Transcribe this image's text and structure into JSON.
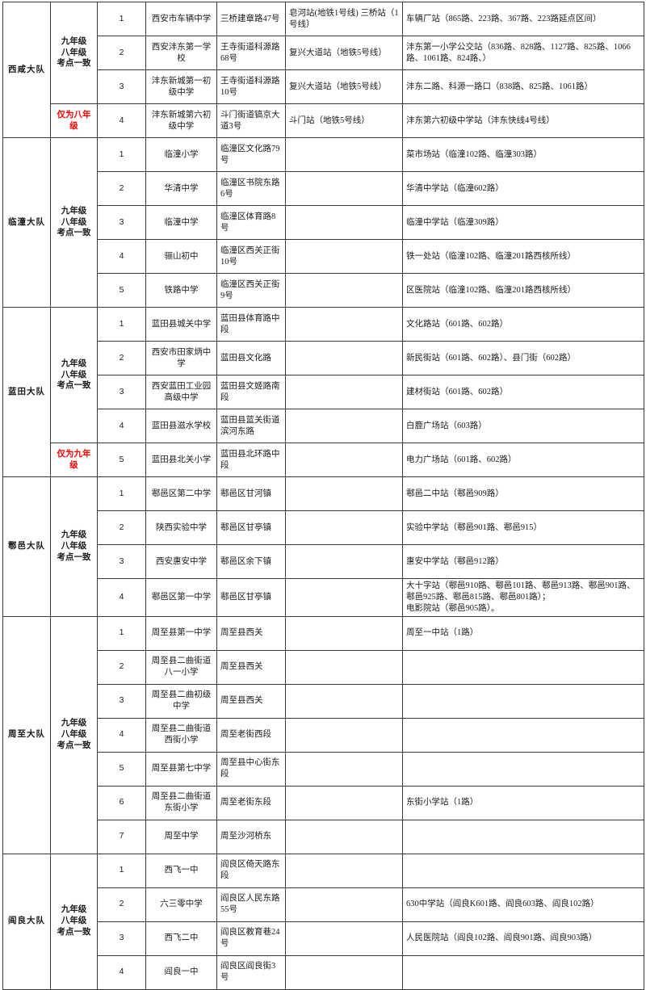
{
  "colors": {
    "red_text": "#ff0000",
    "border": "#3a3a3a",
    "text": "#1a1a1a",
    "background": "#ffffff"
  },
  "table": {
    "column_keys": [
      "district",
      "grade",
      "num",
      "school",
      "address",
      "metro",
      "bus"
    ],
    "sections": [
      {
        "district": "西咸大队",
        "groups": [
          {
            "grade": "九年级\n八年级\n考点一致",
            "red": false,
            "rows": [
              {
                "num": "1",
                "school": "西安市车辆中学",
                "address": "三桥建章路47号",
                "metro": "皂河站(地铁1号线) 三桥站（1号线）",
                "bus": "车辆厂站（865路、223路、367路、223路延点区间）"
              },
              {
                "num": "2",
                "school": "西安沣东第一学校",
                "address": "王寺街道科源路68号",
                "metro": "复兴大道站（地铁5号线）",
                "bus": "沣东第一小学公交站（836路、828路、1127路、825路、1066路、1061路、824路、）"
              },
              {
                "num": "3",
                "school": "沣东新城第一初级中学",
                "address": "王寺街道科源路10号",
                "metro": "复兴大道站（地铁5号线）",
                "bus": "沣东二路、科源一路口（838路、825路、1061路）"
              }
            ]
          },
          {
            "grade": "仅为八年级",
            "red": true,
            "rows": [
              {
                "num": "4",
                "school": "沣东新城第六初级中学",
                "address": "斗门街道镐京大道3号",
                "metro": "斗门站（地铁5号线）",
                "bus": "沣东第六初级中学站（沣东快线4号线）"
              }
            ]
          }
        ]
      },
      {
        "district": "临潼大队",
        "groups": [
          {
            "grade": "九年级\n八年级\n考点一致",
            "red": false,
            "rows": [
              {
                "num": "1",
                "school": "临潼小学",
                "address": "临潼区文化路79号",
                "metro": "",
                "bus": "菜市场站（临潼102路、临潼303路）"
              },
              {
                "num": "2",
                "school": "华清中学",
                "address": "临潼区书院东路6号",
                "metro": "",
                "bus": "华清中学站（临潼602路）"
              },
              {
                "num": "3",
                "school": "临潼中学",
                "address": "临潼区体育路8号",
                "metro": "",
                "bus": "临潼中学站（临潼309路）"
              },
              {
                "num": "4",
                "school": "骊山初中",
                "address": "临潼区西关正街10号",
                "metro": "",
                "bus": "铁一处站（临潼102路、临潼201路西核所线）"
              },
              {
                "num": "5",
                "school": "铁路中学",
                "address": "临潼区西关正街9号",
                "metro": "",
                "bus": "区医院站（临潼102路、临潼201路西核所线）"
              }
            ]
          }
        ]
      },
      {
        "district": "蓝田大队",
        "groups": [
          {
            "grade": "九年级\n八年级\n考点一致",
            "red": false,
            "rows": [
              {
                "num": "1",
                "school": "蓝田县城关中学",
                "address": "蓝田县体育路中段",
                "metro": "",
                "bus": "文化路站（601路、602路）"
              },
              {
                "num": "2",
                "school": "西安市田家炳中学",
                "address": "蓝田县文化路",
                "metro": "",
                "bus": "新民街站（601路、602路）、县门街（602路）"
              },
              {
                "num": "3",
                "school": "西安蓝田工业园高级中学",
                "address": "蓝田县文姬路南段",
                "metro": "",
                "bus": "建材街站（601路、602路）"
              },
              {
                "num": "4",
                "school": "蓝田县滋水学校",
                "address": "蓝田县蓝关街道滨河东路",
                "metro": "",
                "bus": "白鹿广场站（603路）"
              }
            ]
          },
          {
            "grade": "仅为九年级",
            "red": true,
            "rows": [
              {
                "num": "5",
                "school": "蓝田县北关小学",
                "address": "蓝田县北环路中段",
                "metro": "",
                "bus": "电力广场站（601路、602路）"
              }
            ]
          }
        ]
      },
      {
        "district": "鄠邑大队",
        "groups": [
          {
            "grade": "九年级\n八年级\n考点一致",
            "red": false,
            "rows": [
              {
                "num": "1",
                "school": "鄠邑区第二中学",
                "address": "鄠邑区甘河镇",
                "metro": "",
                "bus": "鄠邑二中站（鄠邑909路）"
              },
              {
                "num": "2",
                "school": "陕西实验中学",
                "address": "鄠邑区甘亭镇",
                "metro": "",
                "bus": "实验中学站（鄠邑901路、鄠邑915）"
              },
              {
                "num": "3",
                "school": "西安惠安中学",
                "address": "鄠邑区余下镇",
                "metro": "",
                "bus": "惠安中学站（鄠邑912路）"
              },
              {
                "num": "4",
                "school": "鄠邑区第一中学",
                "address": "鄠邑区甘亭镇",
                "metro": "",
                "bus": "大十字站（鄠邑910路、鄠邑101路、鄠邑913路、鄠邑901路、鄠邑925路、鄠邑815路、鄠邑801路）；\n电影院站（鄠邑905路）。"
              }
            ]
          }
        ]
      },
      {
        "district": "周至大队",
        "groups": [
          {
            "grade": "九年级\n八年级\n考点一致",
            "red": false,
            "rows": [
              {
                "num": "1",
                "school": "周至县第一中学",
                "address": "周至县西关",
                "metro": "",
                "bus": "周至一中站（1路）"
              },
              {
                "num": "2",
                "school": "周至县二曲街道八一小学",
                "address": "周至县西关",
                "metro": "",
                "bus": ""
              },
              {
                "num": "3",
                "school": "周至县二曲初级中学",
                "address": "周至县西关",
                "metro": "",
                "bus": ""
              },
              {
                "num": "4",
                "school": "周至县二曲街道西街小学",
                "address": "周至老街西段",
                "metro": "",
                "bus": ""
              },
              {
                "num": "5",
                "school": "周至县第七中学",
                "address": "周至县中心街东段",
                "metro": "",
                "bus": ""
              },
              {
                "num": "6",
                "school": "周至县二曲街道东街小学",
                "address": "周至老街东段",
                "metro": "",
                "bus": "东街小学站（1路）"
              },
              {
                "num": "7",
                "school": "周至中学",
                "address": "周至沙河桥东",
                "metro": "",
                "bus": ""
              }
            ]
          }
        ]
      },
      {
        "district": "阎良大队",
        "groups": [
          {
            "grade": "九年级\n八年级\n考点一致",
            "red": false,
            "rows": [
              {
                "num": "1",
                "school": "西飞一中",
                "address": "阎良区倚天路东段",
                "metro": "",
                "bus": ""
              },
              {
                "num": "2",
                "school": "六三零中学",
                "address": "阎良区人民东路55号",
                "metro": "",
                "bus": "630中学站（阎良K601路、阎良603路、阎良102路）"
              },
              {
                "num": "3",
                "school": "西飞二中",
                "address": "阎良区教育巷24号",
                "metro": "",
                "bus": "人民医院站（阎良102路、阎良901路、阎良903路）"
              },
              {
                "num": "4",
                "school": "阎良一中",
                "address": "阎良区阎良街3号",
                "metro": "",
                "bus": ""
              }
            ]
          }
        ]
      }
    ]
  }
}
